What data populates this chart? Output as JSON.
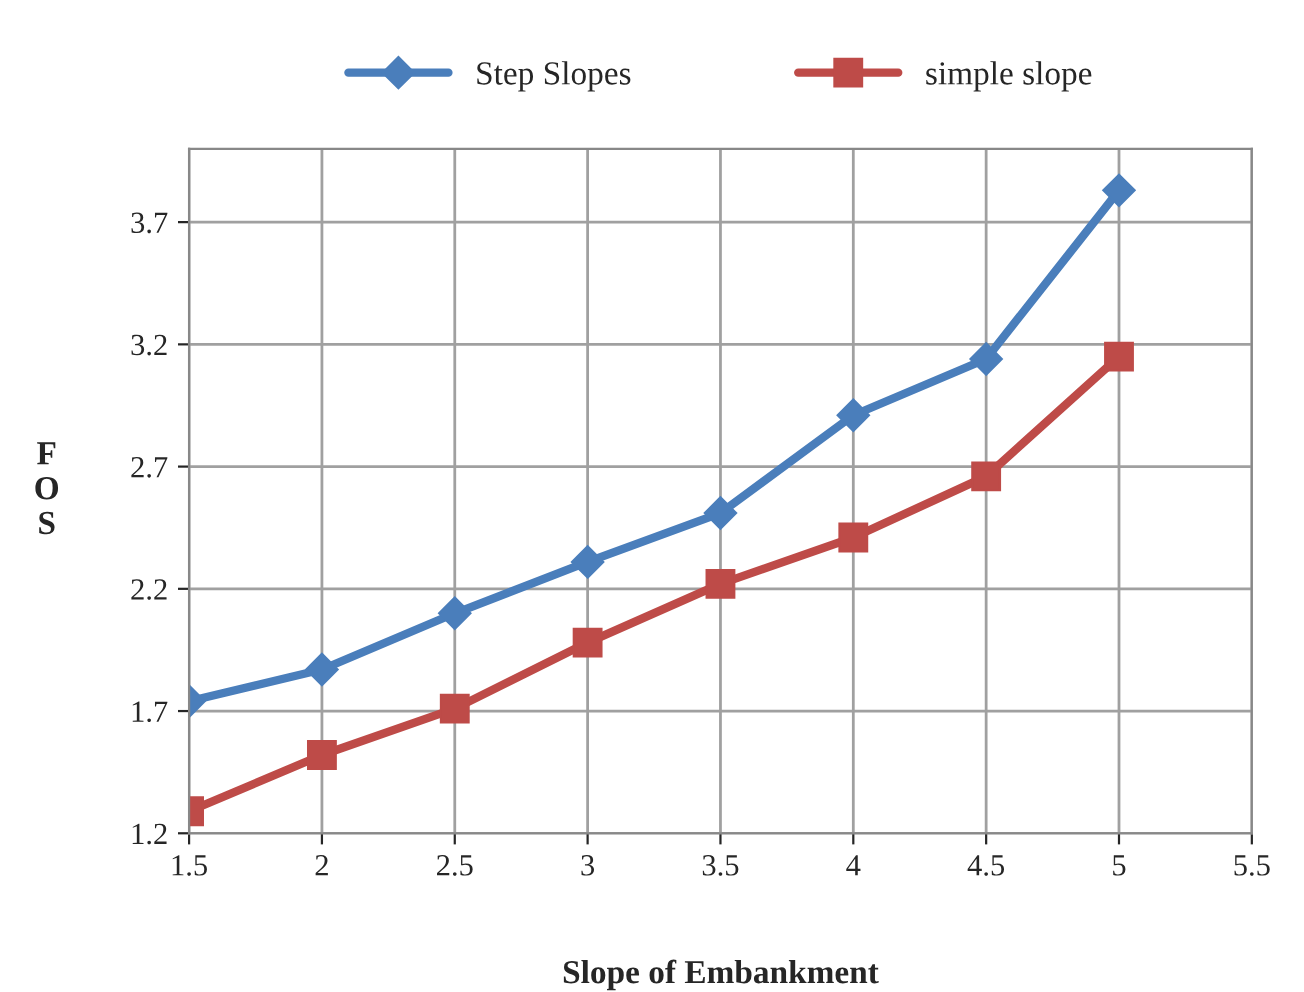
{
  "chart_data": {
    "type": "line",
    "xlabel": "Slope of Embankment",
    "ylabel": "F O S",
    "x": [
      1.5,
      2,
      2.5,
      3,
      3.5,
      4,
      4.5,
      5
    ],
    "series": [
      {
        "name": "Step Slopes",
        "color": "#4a7ebb",
        "marker": "diamond",
        "values": [
          1.74,
          1.87,
          2.1,
          2.31,
          2.51,
          2.91,
          3.14,
          3.83
        ]
      },
      {
        "name": "simple slope",
        "color": "#be4b48",
        "marker": "square",
        "values": [
          1.29,
          1.52,
          1.71,
          1.98,
          2.22,
          2.41,
          2.66,
          3.15
        ]
      }
    ],
    "xlim": [
      1.5,
      5.5
    ],
    "xticks": [
      1.5,
      2,
      2.5,
      3,
      3.5,
      4,
      4.5,
      5,
      5.5
    ],
    "ylim": [
      1.2,
      4.0
    ],
    "yticks": [
      1.2,
      1.7,
      2.2,
      2.7,
      3.2,
      3.7
    ],
    "grid": true,
    "legend": "top",
    "line_style": "solid"
  }
}
